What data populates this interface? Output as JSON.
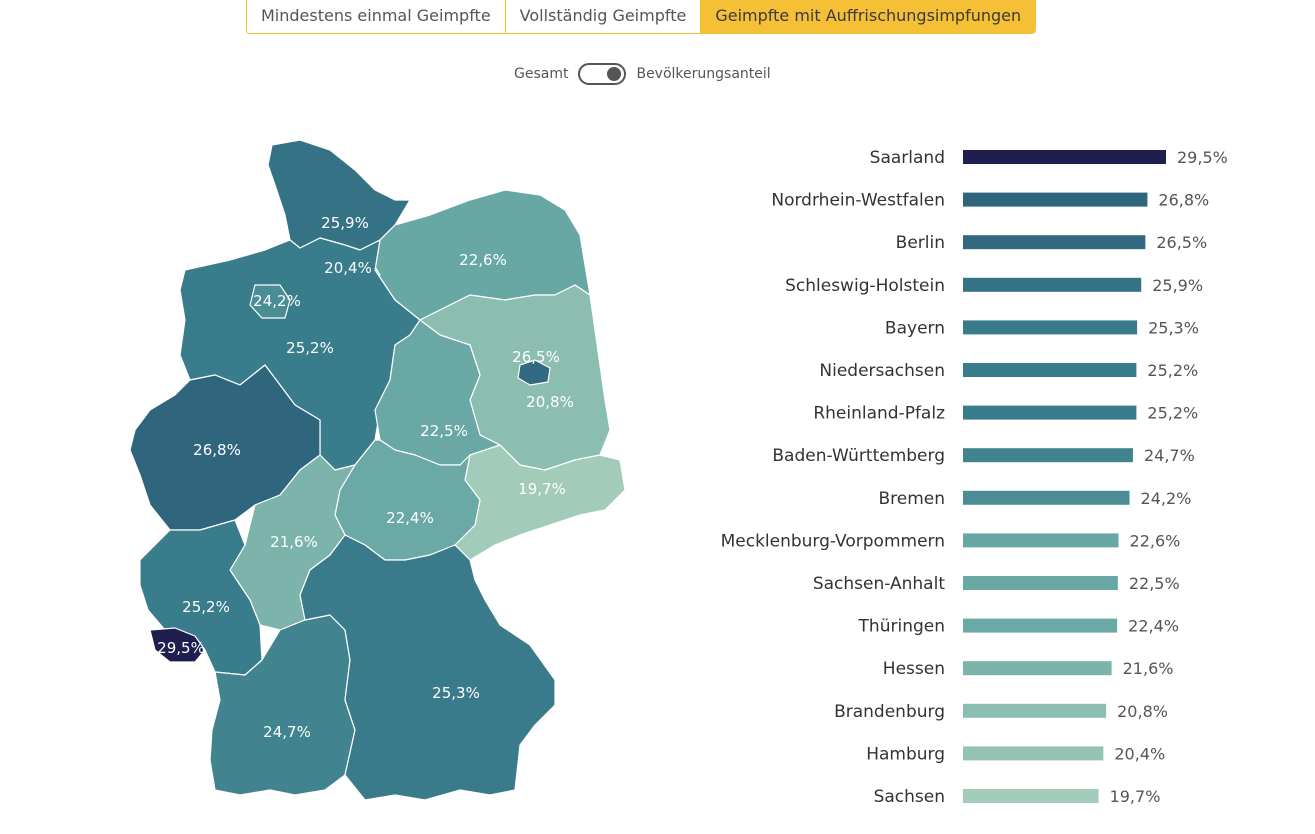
{
  "tabs": [
    {
      "label": "Mindestens einmal Geimpfte",
      "active": false
    },
    {
      "label": "Vollständig Geimpfte",
      "active": false
    },
    {
      "label": "Geimpfte mit Auffrischungsimpfungen",
      "active": true
    }
  ],
  "toggle": {
    "left_label": "Gesamt",
    "right_label": "Bevölkerungsanteil",
    "state": "right"
  },
  "colors": {
    "accent": "#f5c036",
    "scale_low": "#a3cbb9",
    "scale_high": "#1e1e4f"
  },
  "chart_data": [
    {
      "type": "map",
      "regions": [
        {
          "name": "Schleswig-Holstein",
          "value_label": "25,9%",
          "value": 25.9
        },
        {
          "name": "Hamburg",
          "value_label": "20,4%",
          "value": 20.4
        },
        {
          "name": "Mecklenburg-Vorpommern",
          "value_label": "22,6%",
          "value": 22.6
        },
        {
          "name": "Bremen",
          "value_label": "24,2%",
          "value": 24.2
        },
        {
          "name": "Niedersachsen",
          "value_label": "25,2%",
          "value": 25.2
        },
        {
          "name": "Berlin",
          "value_label": "26,5%",
          "value": 26.5
        },
        {
          "name": "Brandenburg",
          "value_label": "20,8%",
          "value": 20.8
        },
        {
          "name": "Sachsen-Anhalt",
          "value_label": "22,5%",
          "value": 22.5
        },
        {
          "name": "Nordrhein-Westfalen",
          "value_label": "26,8%",
          "value": 26.8
        },
        {
          "name": "Sachsen",
          "value_label": "19,7%",
          "value": 19.7
        },
        {
          "name": "Thüringen",
          "value_label": "22,4%",
          "value": 22.4
        },
        {
          "name": "Hessen",
          "value_label": "21,6%",
          "value": 21.6
        },
        {
          "name": "Rheinland-Pfalz",
          "value_label": "25,2%",
          "value": 25.2
        },
        {
          "name": "Saarland",
          "value_label": "29,5%",
          "value": 29.5
        },
        {
          "name": "Bayern",
          "value_label": "25,3%",
          "value": 25.3
        },
        {
          "name": "Baden-Württemberg",
          "value_label": "24,7%",
          "value": 24.7
        }
      ]
    },
    {
      "type": "bar",
      "orientation": "horizontal",
      "categories": [
        "Saarland",
        "Nordrhein-Westfalen",
        "Berlin",
        "Schleswig-Holstein",
        "Bayern",
        "Niedersachsen",
        "Rheinland-Pfalz",
        "Baden-Württemberg",
        "Bremen",
        "Mecklenburg-Vorpommern",
        "Sachsen-Anhalt",
        "Thüringen",
        "Hessen",
        "Brandenburg",
        "Hamburg",
        "Sachsen"
      ],
      "values": [
        29.5,
        26.8,
        26.5,
        25.9,
        25.3,
        25.2,
        25.2,
        24.7,
        24.2,
        22.6,
        22.5,
        22.4,
        21.6,
        20.8,
        20.4,
        19.7
      ],
      "value_labels": [
        "29,5%",
        "26,8%",
        "26,5%",
        "25,9%",
        "25,3%",
        "25,2%",
        "25,2%",
        "24,7%",
        "24,2%",
        "22,6%",
        "22,5%",
        "22,4%",
        "21,6%",
        "20,8%",
        "20,4%",
        "19,7%"
      ]
    }
  ]
}
